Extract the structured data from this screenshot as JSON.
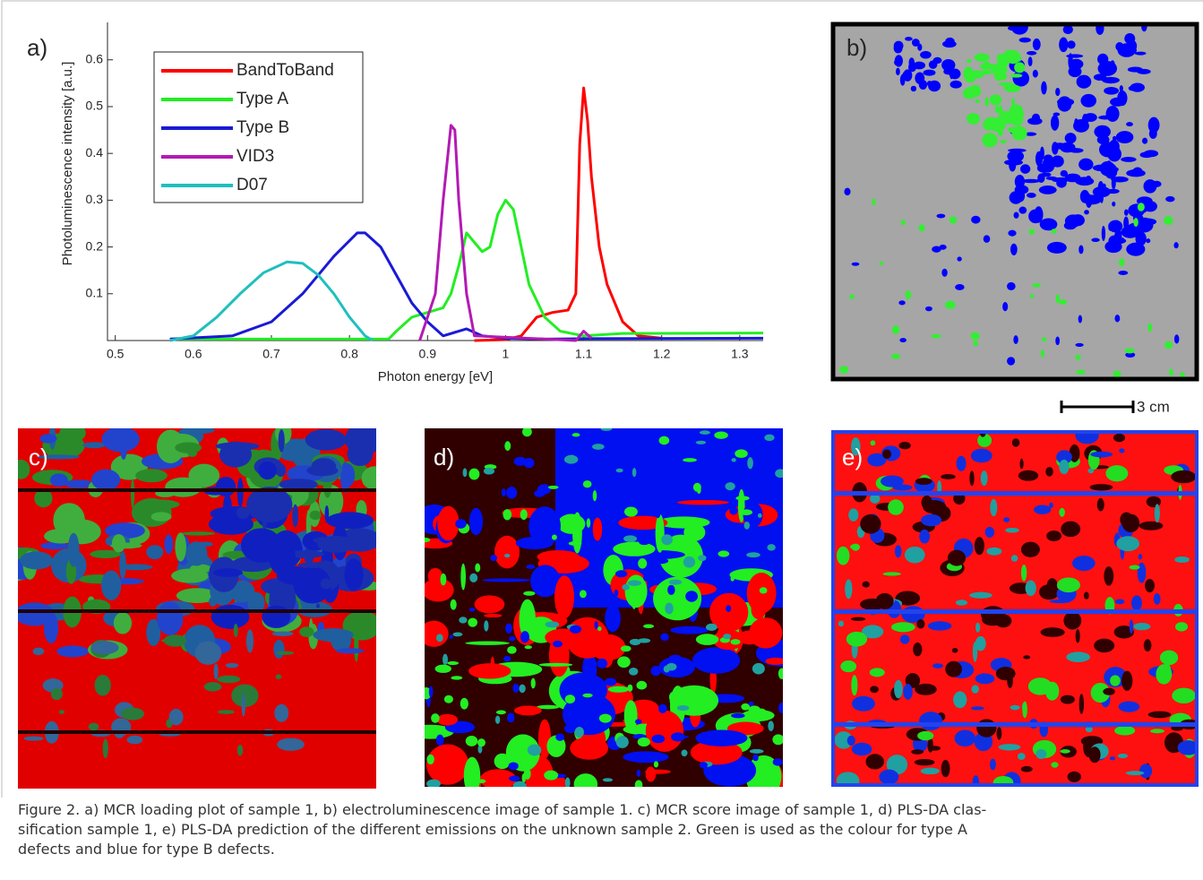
{
  "chart_data": {
    "type": "line",
    "panel_label": "a)",
    "x_label": "Photon energy [eV]",
    "y_label": "Photoluminescence intensity [a.u.]",
    "xlim": [
      0.49,
      1.33
    ],
    "ylim": [
      0,
      0.68
    ],
    "xticks": [
      0.5,
      0.6,
      0.7,
      0.8,
      0.9,
      1,
      1.1,
      1.2,
      1.3
    ],
    "yticks": [
      0.1,
      0.2,
      0.3,
      0.4,
      0.5,
      0.6
    ],
    "legend": "upper left",
    "series": [
      {
        "name": "BandToBand",
        "color": "#ff0000",
        "x": [
          0.96,
          1.0,
          1.02,
          1.03,
          1.04,
          1.06,
          1.08,
          1.09,
          1.095,
          1.1,
          1.105,
          1.11,
          1.12,
          1.13,
          1.15,
          1.17,
          1.2
        ],
        "values": [
          0,
          0.002,
          0.01,
          0.03,
          0.05,
          0.06,
          0.065,
          0.1,
          0.42,
          0.54,
          0.47,
          0.35,
          0.2,
          0.12,
          0.04,
          0.01,
          0.005
        ]
      },
      {
        "name": "Type A",
        "color": "#22ee22",
        "x": [
          0.57,
          0.85,
          0.86,
          0.88,
          0.9,
          0.92,
          0.93,
          0.94,
          0.95,
          0.96,
          0.97,
          0.98,
          0.99,
          1.0,
          1.01,
          1.02,
          1.03,
          1.05,
          1.07,
          1.1,
          1.15,
          1.33
        ],
        "values": [
          0.003,
          0.003,
          0.02,
          0.05,
          0.06,
          0.07,
          0.1,
          0.16,
          0.23,
          0.21,
          0.19,
          0.2,
          0.27,
          0.3,
          0.28,
          0.2,
          0.12,
          0.05,
          0.02,
          0.01,
          0.015,
          0.016
        ]
      },
      {
        "name": "Type B",
        "color": "#1a1ad6",
        "x": [
          0.57,
          0.65,
          0.7,
          0.74,
          0.78,
          0.81,
          0.82,
          0.84,
          0.86,
          0.88,
          0.9,
          0.92,
          0.94,
          0.95,
          0.97,
          1.0,
          1.05,
          1.1,
          1.33
        ],
        "values": [
          0.003,
          0.01,
          0.04,
          0.1,
          0.18,
          0.23,
          0.23,
          0.2,
          0.14,
          0.08,
          0.04,
          0.01,
          0.02,
          0.025,
          0.01,
          0.005,
          0.003,
          0.004,
          0.005
        ]
      },
      {
        "name": "VID3",
        "color": "#b31ab3",
        "x": [
          0.89,
          0.91,
          0.92,
          0.93,
          0.935,
          0.94,
          0.95,
          0.96,
          1.09,
          1.1,
          1.11
        ],
        "values": [
          0,
          0.1,
          0.3,
          0.46,
          0.45,
          0.3,
          0.1,
          0.01,
          0,
          0.02,
          0.005
        ]
      },
      {
        "name": "D07",
        "color": "#1fbfbf",
        "x": [
          0.57,
          0.6,
          0.63,
          0.66,
          0.69,
          0.72,
          0.74,
          0.76,
          0.78,
          0.8,
          0.82,
          0.83
        ],
        "values": [
          0,
          0.01,
          0.05,
          0.1,
          0.145,
          0.168,
          0.165,
          0.14,
          0.1,
          0.05,
          0.01,
          0
        ]
      }
    ]
  },
  "panels": {
    "b": "b)",
    "c": "c)",
    "d": "d)",
    "e": "e)",
    "scale_bar": "3 cm"
  },
  "caption": [
    "Figure 2. a) MCR loading plot of sample 1, b) electroluminescence image of sample 1. c) MCR score image of sample 1, d) PLS-DA clas-",
    "sification sample 1, e) PLS-DA prediction of the different emissions on the unknown sample 2. Green is used as the colour for type A",
    "defects and blue for type B defects."
  ]
}
